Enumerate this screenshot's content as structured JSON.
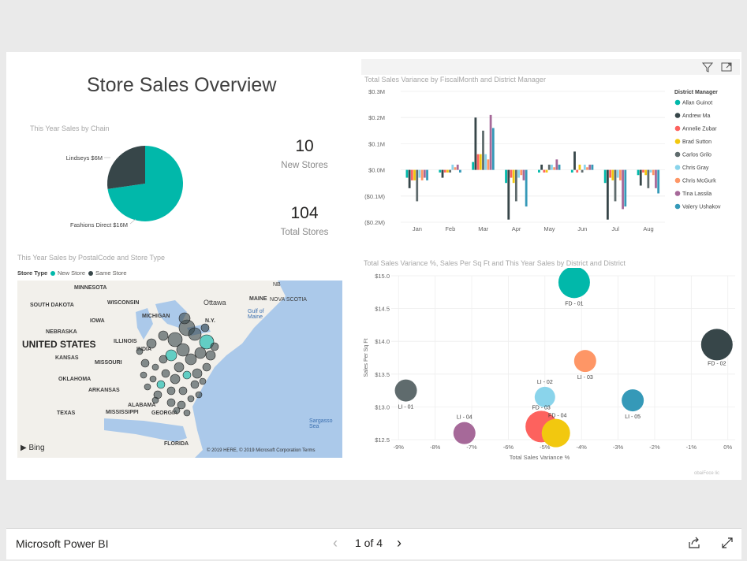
{
  "report": {
    "title": "Store Sales Overview",
    "pie_title": "This Year Sales by Chain",
    "kpi_new": {
      "value": "10",
      "label": "New Stores"
    },
    "kpi_total": {
      "value": "104",
      "label": "Total Stores"
    },
    "map_title": "This Year Sales by PostalCode and Store Type",
    "map_legend_title": "Store Type",
    "map_legend": [
      "New Store",
      "Same Store"
    ],
    "map_country": "UNITED STATES",
    "map_labels": [
      "MINNESOTA",
      "WISCONSIN",
      "SOUTH DAKOTA",
      "IOWA",
      "NEBRASKA",
      "ILLINOIS",
      "KANSAS",
      "MISSOURI",
      "OKLAHOMA",
      "ARKANSAS",
      "TEXAS",
      "MISSISSIPPI",
      "ALABAMA",
      "GEORGIA",
      "FLORIDA",
      "MICHIGAN",
      "N.Y.",
      "MAINE",
      "NOVA SCOTIA",
      "NB",
      "Ottawa",
      "Gulf of Maine",
      "Sargasso Sea",
      "INDIA"
    ],
    "map_credit": "© 2019 HERE, © 2019 Microsoft Corporation  Terms",
    "bing": "Bing",
    "bar_title": "Total Sales Variance by FiscalMonth and District Manager",
    "scatter_title": "Total Sales Variance %, Sales Per Sq Ft and This Year Sales by District and District",
    "scatter_corner": "obaiFoce lic"
  },
  "footer": {
    "brand": "Microsoft Power BI",
    "pager": "1 of 4"
  },
  "colors": {
    "teal": "#01b8aa",
    "dark": "#374649",
    "red": "#fd625e",
    "yellow": "#f2c80f",
    "grey": "#5f6b6d",
    "lightblue": "#8ad4eb",
    "orange": "#fe9666",
    "purple": "#a66999",
    "blue": "#3599b8"
  },
  "chart_data": [
    {
      "type": "pie",
      "title": "This Year Sales by Chain",
      "labels": [
        "Lindseys",
        "Fashions Direct"
      ],
      "values": [
        6,
        16
      ],
      "data_labels": [
        "Lindseys $6M",
        "Fashions Direct $16M"
      ],
      "colors": [
        "#374649",
        "#01b8aa"
      ]
    },
    {
      "type": "bar",
      "title": "Total Sales Variance by FiscalMonth and District Manager",
      "categories": [
        "Jan",
        "Feb",
        "Mar",
        "Apr",
        "May",
        "Jun",
        "Jul",
        "Aug"
      ],
      "yticks": [
        "$0.3M",
        "$0.2M",
        "$0.1M",
        "$0.0M",
        "($0.1M)",
        "($0.2M)"
      ],
      "ylim": [
        -0.2,
        0.3
      ],
      "legend_title": "District Manager",
      "legend_position": "right",
      "series": [
        {
          "name": "Allan Guinot",
          "color": "#01b8aa",
          "values": [
            -0.03,
            -0.01,
            0.03,
            -0.05,
            -0.01,
            -0.01,
            -0.05,
            -0.02
          ]
        },
        {
          "name": "Andrew Ma",
          "color": "#374649",
          "values": [
            -0.07,
            -0.03,
            0.2,
            -0.19,
            0.02,
            0.07,
            -0.19,
            -0.06
          ]
        },
        {
          "name": "Annelie Zubar",
          "color": "#fd625e",
          "values": [
            -0.04,
            -0.01,
            0.06,
            -0.03,
            -0.01,
            -0.01,
            -0.03,
            -0.01
          ]
        },
        {
          "name": "Brad Sutton",
          "color": "#f2c80f",
          "values": [
            -0.04,
            -0.01,
            0.06,
            -0.05,
            -0.01,
            0.02,
            -0.04,
            -0.02
          ]
        },
        {
          "name": "Carlos Grilo",
          "color": "#5f6b6d",
          "values": [
            -0.12,
            -0.01,
            0.15,
            -0.12,
            0.02,
            -0.01,
            -0.12,
            -0.07
          ]
        },
        {
          "name": "Chris Gray",
          "color": "#8ad4eb",
          "values": [
            -0.03,
            0.02,
            0.06,
            -0.03,
            0.02,
            0.02,
            -0.03,
            -0.01
          ]
        },
        {
          "name": "Chris McGurk",
          "color": "#fe9666",
          "values": [
            -0.04,
            0.01,
            0.04,
            -0.02,
            0.01,
            0.01,
            -0.04,
            -0.02
          ]
        },
        {
          "name": "Tina Lassila",
          "color": "#a66999",
          "values": [
            -0.03,
            0.02,
            0.21,
            -0.04,
            0.04,
            0.02,
            -0.15,
            -0.07
          ]
        },
        {
          "name": "Valery Ushakov",
          "color": "#3599b8",
          "values": [
            -0.04,
            -0.01,
            0.16,
            -0.14,
            0.02,
            0.02,
            -0.14,
            -0.09
          ]
        }
      ]
    },
    {
      "type": "scatter",
      "title": "Total Sales Variance %, Sales Per Sq Ft and This Year Sales by District and District",
      "xlabel": "Total Sales Variance %",
      "ylabel": "Sales Per Sq Ft",
      "xticks": [
        "-9%",
        "-8%",
        "-7%",
        "-6%",
        "-5%",
        "-4%",
        "-3%",
        "-2%",
        "-1%",
        "0%"
      ],
      "yticks": [
        "$15.0",
        "$14.5",
        "$14.0",
        "$13.5",
        "$13.0",
        "$12.5"
      ],
      "xlim": [
        -9.2,
        0.2
      ],
      "ylim": [
        12.5,
        15.0
      ],
      "points": [
        {
          "label": "FD - 01",
          "x": -4.2,
          "y": 14.9,
          "size": 1.0,
          "color": "#01b8aa"
        },
        {
          "label": "FD - 02",
          "x": -0.3,
          "y": 13.95,
          "size": 1.0,
          "color": "#374649"
        },
        {
          "label": "LI - 01",
          "x": -8.8,
          "y": 13.25,
          "size": 0.7,
          "color": "#5f6b6d"
        },
        {
          "label": "LI - 02",
          "x": -5.0,
          "y": 13.15,
          "size": 0.65,
          "color": "#8ad4eb"
        },
        {
          "label": "LI - 03",
          "x": -3.9,
          "y": 13.7,
          "size": 0.7,
          "color": "#fe9666"
        },
        {
          "label": "LI - 04",
          "x": -7.2,
          "y": 12.6,
          "size": 0.7,
          "color": "#a66999"
        },
        {
          "label": "LI - 05",
          "x": -2.6,
          "y": 13.1,
          "size": 0.7,
          "color": "#3599b8"
        },
        {
          "label": "FD - 03",
          "x": -5.1,
          "y": 12.7,
          "size": 1.0,
          "color": "#fd625e"
        },
        {
          "label": "FD - 04",
          "x": -4.7,
          "y": 12.6,
          "size": 0.9,
          "color": "#f2c80f"
        }
      ]
    }
  ]
}
